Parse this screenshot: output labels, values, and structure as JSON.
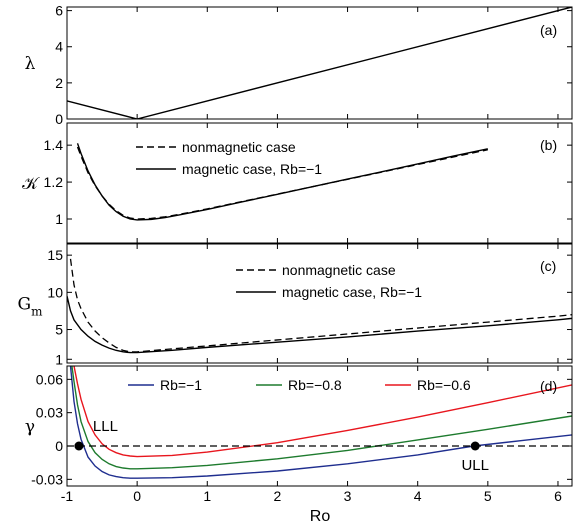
{
  "chart_data": [
    {
      "panel": "(a)",
      "type": "line",
      "ylabel": "λ",
      "xlim": [
        -1,
        6.2
      ],
      "ylim": [
        0,
        6.2
      ],
      "xticks": [
        -1,
        0,
        1,
        2,
        3,
        4,
        5,
        6
      ],
      "yticks": [
        0,
        2,
        4,
        6
      ],
      "series": [
        {
          "style": "solid",
          "color": "#000000",
          "x": [
            -1,
            0,
            6.2
          ],
          "y": [
            1.0,
            0.0,
            6.2
          ]
        }
      ]
    },
    {
      "panel": "(b)",
      "type": "line",
      "ylabel": "𝒦",
      "xlim": [
        -1,
        6.2
      ],
      "ylim": [
        0.87,
        1.52
      ],
      "yticks": [
        1,
        1.2,
        1.4
      ],
      "legend": "top-left",
      "series": [
        {
          "name": "nonmagnetic case",
          "style": "dashed",
          "color": "#000000",
          "x": [
            -0.85,
            -0.8,
            -0.7,
            -0.6,
            -0.5,
            -0.4,
            -0.3,
            -0.2,
            -0.1,
            0,
            0.2,
            0.4,
            0.6,
            0.8,
            1,
            1.5,
            2,
            2.5,
            3,
            3.5,
            4,
            4.5,
            5
          ],
          "y": [
            1.39,
            1.34,
            1.25,
            1.18,
            1.125,
            1.08,
            1.045,
            1.02,
            1.005,
            1.0,
            1.003,
            1.012,
            1.025,
            1.04,
            1.055,
            1.095,
            1.135,
            1.175,
            1.215,
            1.255,
            1.295,
            1.335,
            1.375
          ]
        },
        {
          "name": "magnetic case, Rb=−1",
          "style": "solid",
          "color": "#000000",
          "x": [
            -0.85,
            -0.8,
            -0.7,
            -0.6,
            -0.5,
            -0.4,
            -0.3,
            -0.2,
            -0.1,
            0,
            0.2,
            0.4,
            0.6,
            0.8,
            1,
            1.5,
            2,
            2.5,
            3,
            3.5,
            4,
            4.5,
            5
          ],
          "y": [
            1.41,
            1.355,
            1.26,
            1.185,
            1.125,
            1.075,
            1.04,
            1.015,
            1.0,
            0.995,
            0.998,
            1.008,
            1.022,
            1.037,
            1.052,
            1.093,
            1.134,
            1.175,
            1.216,
            1.257,
            1.298,
            1.34,
            1.38
          ]
        }
      ]
    },
    {
      "panel": "(c)",
      "type": "line",
      "ylabel": "G",
      "ylabel_sub": "m",
      "xlim": [
        -1,
        6.2
      ],
      "ylim": [
        0.5,
        16.5
      ],
      "yticks": [
        1,
        5,
        10,
        15
      ],
      "legend": "top-right",
      "series": [
        {
          "name": "nonmagnetic case",
          "style": "dashed",
          "color": "#000000",
          "x": [
            -0.95,
            -0.9,
            -0.85,
            -0.8,
            -0.7,
            -0.6,
            -0.5,
            -0.4,
            -0.3,
            -0.2,
            -0.1,
            0,
            0.5,
            1,
            2,
            3,
            4,
            5,
            6,
            6.2
          ],
          "y": [
            14.5,
            11.0,
            9.0,
            7.8,
            6.0,
            4.8,
            3.9,
            3.2,
            2.6,
            2.2,
            2.0,
            2.0,
            2.4,
            2.8,
            3.6,
            4.4,
            5.2,
            6.0,
            6.8,
            7.0
          ]
        },
        {
          "name": "magnetic case, Rb=−1",
          "style": "solid",
          "color": "#000000",
          "x": [
            -1,
            -0.95,
            -0.9,
            -0.8,
            -0.7,
            -0.6,
            -0.5,
            -0.4,
            -0.3,
            -0.2,
            -0.1,
            0,
            0.5,
            1,
            2,
            3,
            4,
            5,
            6,
            6.2
          ],
          "y": [
            9.5,
            7.5,
            6.3,
            5.0,
            4.1,
            3.4,
            2.9,
            2.5,
            2.2,
            2.0,
            1.9,
            1.9,
            2.2,
            2.6,
            3.3,
            4.0,
            4.8,
            5.5,
            6.3,
            6.5
          ]
        }
      ]
    },
    {
      "panel": "(d)",
      "type": "line",
      "ylabel": "γ",
      "xlabel": "Ro",
      "xlim": [
        -1,
        6.2
      ],
      "ylim": [
        -0.036,
        0.072
      ],
      "yticks": [
        -0.03,
        0,
        0.03,
        0.06
      ],
      "legend": "top",
      "series": [
        {
          "name": "Rb=−1",
          "style": "solid",
          "color": "#1f2e8f",
          "x": [
            -0.95,
            -0.9,
            -0.85,
            -0.8,
            -0.7,
            -0.6,
            -0.5,
            -0.4,
            -0.3,
            -0.2,
            -0.1,
            0,
            0.5,
            1,
            2,
            3,
            4,
            4.8,
            5.5,
            6.2
          ],
          "y": [
            0.072,
            0.04,
            0.02,
            0.006,
            -0.01,
            -0.018,
            -0.023,
            -0.026,
            -0.0275,
            -0.0285,
            -0.029,
            -0.029,
            -0.0285,
            -0.027,
            -0.0225,
            -0.016,
            -0.008,
            0.0,
            0.005,
            0.01
          ]
        },
        {
          "name": "Rb=−0.8",
          "style": "solid",
          "color": "#1e7b2e",
          "x": [
            -0.93,
            -0.9,
            -0.85,
            -0.8,
            -0.7,
            -0.6,
            -0.5,
            -0.4,
            -0.3,
            -0.2,
            -0.1,
            0,
            0.5,
            1,
            2,
            3,
            4,
            5,
            6.2
          ],
          "y": [
            0.072,
            0.058,
            0.037,
            0.022,
            0.004,
            -0.006,
            -0.012,
            -0.016,
            -0.0185,
            -0.0198,
            -0.0205,
            -0.0205,
            -0.0195,
            -0.0175,
            -0.0115,
            -0.004,
            0.0055,
            0.015,
            0.027
          ]
        },
        {
          "name": "Rb=−0.6",
          "style": "solid",
          "color": "#e8161e",
          "x": [
            -0.9,
            -0.85,
            -0.8,
            -0.7,
            -0.6,
            -0.5,
            -0.4,
            -0.3,
            -0.2,
            -0.1,
            0,
            0.5,
            1,
            2,
            3,
            4,
            5,
            6.2
          ],
          "y": [
            0.072,
            0.056,
            0.042,
            0.022,
            0.01,
            0.002,
            -0.003,
            -0.006,
            -0.008,
            -0.009,
            -0.0095,
            -0.0085,
            -0.0055,
            0.003,
            0.014,
            0.026,
            0.039,
            0.055
          ]
        },
        {
          "name": "",
          "style": "dashed",
          "color": "#000000",
          "x": [
            -1,
            6.2
          ],
          "y": [
            0,
            0
          ]
        }
      ],
      "annotations": [
        {
          "text": "LLL",
          "x": -0.83,
          "y": 0
        },
        {
          "text": "ULL",
          "x": 4.82,
          "y": 0
        }
      ]
    }
  ],
  "xlabel": "Ro",
  "panel_tags": [
    "(a)",
    "(b)",
    "(c)",
    "(d)"
  ]
}
